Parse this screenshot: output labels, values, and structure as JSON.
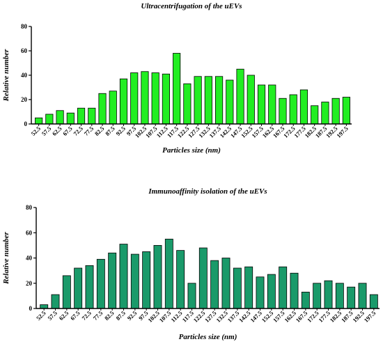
{
  "chart_data": [
    {
      "type": "bar",
      "title": "Ultracentrifugation of the uEVs",
      "xlabel": "Particles size (nm)",
      "ylabel": "Relative number",
      "ylim": [
        0,
        80
      ],
      "yticks": [
        0,
        20,
        40,
        60,
        80
      ],
      "categories": [
        "52.5",
        "57.5",
        "62.5",
        "67.5",
        "72.5",
        "77.5",
        "82.5",
        "87.5",
        "92.5",
        "97.5",
        "102.5",
        "107.5",
        "112.5",
        "117.5",
        "122.5",
        "127.5",
        "132.5",
        "137.5",
        "142.5",
        "147.5",
        "152.5",
        "157.5",
        "162.5",
        "167.5",
        "172.5",
        "177.5",
        "182.5",
        "187.5",
        "192.5",
        "197.5"
      ],
      "values": [
        5,
        8,
        11,
        9,
        13,
        13,
        25,
        27,
        37,
        42,
        43,
        42,
        41,
        58,
        33,
        39,
        39,
        39,
        36,
        45,
        40,
        32,
        32,
        21,
        24,
        28,
        15,
        18,
        21,
        22
      ],
      "bar_color": "#22ee22",
      "grid": false
    },
    {
      "type": "bar",
      "title": "Immunoaffinity isolation of the uEVs",
      "xlabel": "Particles size (nm)",
      "ylabel": "Relative number",
      "ylim": [
        0,
        80
      ],
      "yticks": [
        0,
        20,
        40,
        60,
        80
      ],
      "categories": [
        "52.5",
        "57.5",
        "62.5",
        "67.5",
        "72.5",
        "77.5",
        "82.5",
        "87.5",
        "92.5",
        "97.5",
        "102.5",
        "107.5",
        "112.5",
        "117.5",
        "122.5",
        "127.5",
        "132.5",
        "137.5",
        "142.5",
        "147.5",
        "152.5",
        "157.5",
        "162.5",
        "167.5",
        "172.5",
        "177.5",
        "182.5",
        "187.5",
        "192.5",
        "197.5"
      ],
      "values": [
        3,
        11,
        26,
        32,
        34,
        39,
        44,
        51,
        43,
        45,
        50,
        55,
        46,
        20,
        48,
        38,
        40,
        32,
        33,
        25,
        27,
        33,
        28,
        13,
        20,
        22,
        20,
        17,
        20,
        11
      ],
      "bar_color": "#1a9a6a",
      "grid": false
    }
  ]
}
